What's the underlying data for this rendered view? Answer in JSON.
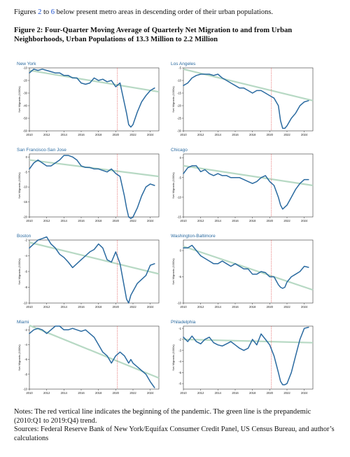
{
  "intro": {
    "before": "Figures ",
    "ref1": "2",
    "middle": " to ",
    "ref2": "6",
    "after": " below present metro areas in descending order of their urban populations."
  },
  "figure_title": "Figure 2: Four-Quarter Moving Average of Quarterly Net Migration to and from Urban Neighborhoods, Urban Populations of 13.3 Million to 2.2 Million",
  "notes": {
    "line1": "Notes: The red vertical line indicates the beginning of the pandemic. The green line is the prepandemic (2010:Q1 to 2019:Q4) trend.",
    "line2": "Sources: Federal Reserve Bank of New York/Equifax Consumer Credit Panel, US Census Bureau, and author’s calculations"
  },
  "colors": {
    "series": "#2a6aa0",
    "trend": "#b7d9c4",
    "pandemic": "#e05050",
    "panel_title": "#2a6aa0"
  },
  "chart_data": [
    {
      "type": "line",
      "title": "New York",
      "ylabel": "Net Migrants (1000s)",
      "xlim": [
        2010,
        2025
      ],
      "ylim": [
        -60,
        -10
      ],
      "xticks": [
        2010,
        2012,
        2014,
        2016,
        2018,
        2020,
        2022,
        2024
      ],
      "yticks": [
        -10,
        -20,
        -30,
        -40,
        -50,
        -60
      ],
      "pandemic_x": 2020.2,
      "trend": [
        [
          2010,
          -12
        ],
        [
          2025,
          -29
        ]
      ],
      "x": [
        2010,
        2010.5,
        2011,
        2011.5,
        2012,
        2012.5,
        2013,
        2013.5,
        2014,
        2014.5,
        2015,
        2015.5,
        2016,
        2016.5,
        2017,
        2017.5,
        2018,
        2018.5,
        2019,
        2019.5,
        2020,
        2020.5,
        2021,
        2021.25,
        2021.5,
        2021.75,
        2022,
        2022.5,
        2023,
        2023.5,
        2024,
        2024.5
      ],
      "y": [
        -14,
        -11,
        -12,
        -11,
        -12,
        -13,
        -14,
        -14,
        -16,
        -16,
        -18,
        -18,
        -22,
        -23,
        -22,
        -18,
        -20,
        -19,
        -21,
        -20,
        -25,
        -22,
        -38,
        -46,
        -55,
        -57,
        -55,
        -45,
        -37,
        -32,
        -28,
        -26
      ]
    },
    {
      "type": "line",
      "title": "Los Angeles",
      "ylabel": "Net Migrants (1000s)",
      "xlim": [
        2010,
        2025
      ],
      "ylim": [
        -30,
        -5
      ],
      "xticks": [
        2010,
        2012,
        2014,
        2016,
        2018,
        2020,
        2022,
        2024
      ],
      "yticks": [
        -5,
        -10,
        -15,
        -20,
        -25,
        -30
      ],
      "pandemic_x": 2020.2,
      "trend": [
        [
          2010,
          -5.5
        ],
        [
          2025,
          -18
        ]
      ],
      "x": [
        2010,
        2010.5,
        2011,
        2011.5,
        2012,
        2012.5,
        2013,
        2013.5,
        2014,
        2014.5,
        2015,
        2015.5,
        2016,
        2016.5,
        2017,
        2017.5,
        2018,
        2018.5,
        2019,
        2019.5,
        2020,
        2020.5,
        2021,
        2021.25,
        2021.5,
        2021.75,
        2022,
        2022.5,
        2023,
        2023.5,
        2024,
        2024.5
      ],
      "y": [
        -12,
        -11,
        -9,
        -8,
        -7.5,
        -7.5,
        -7.5,
        -8,
        -7.5,
        -9,
        -10,
        -11,
        -12,
        -13,
        -13,
        -14,
        -15,
        -14,
        -14,
        -15,
        -16,
        -17,
        -20,
        -26,
        -29,
        -29,
        -28,
        -25,
        -23,
        -20,
        -18.5,
        -18
      ]
    },
    {
      "type": "line",
      "title": "San Francisco-San Jose",
      "ylabel": "Net Migrants (1000s)",
      "xlim": [
        2010,
        2025
      ],
      "ylim": [
        -20,
        1
      ],
      "xticks": [
        2010,
        2012,
        2014,
        2016,
        2018,
        2020,
        2022,
        2024
      ],
      "yticks": [
        0,
        -5,
        -10,
        -15,
        -20
      ],
      "pandemic_x": 2020.2,
      "trend": [
        [
          2010,
          -1
        ],
        [
          2025,
          -6.5
        ]
      ],
      "x": [
        2010,
        2010.5,
        2011,
        2011.5,
        2012,
        2012.5,
        2013,
        2013.5,
        2014,
        2014.5,
        2015,
        2015.5,
        2016,
        2016.5,
        2017,
        2017.5,
        2018,
        2018.5,
        2019,
        2019.5,
        2020,
        2020.5,
        2021,
        2021.25,
        2021.5,
        2021.75,
        2022,
        2022.5,
        2023,
        2023.5,
        2024,
        2024.5
      ],
      "y": [
        -4,
        -2,
        -1,
        -2,
        -3,
        -3,
        -2,
        -1,
        0.5,
        0.5,
        0,
        -1,
        -3,
        -3.5,
        -3.5,
        -4,
        -4,
        -4.5,
        -5,
        -4,
        -5.5,
        -6.5,
        -13,
        -17,
        -20,
        -20.5,
        -20,
        -17,
        -13,
        -10,
        -9,
        -9.5
      ]
    },
    {
      "type": "line",
      "title": "Chicago",
      "ylabel": "Net Migrants (1000s)",
      "xlim": [
        2010,
        2025
      ],
      "ylim": [
        -15,
        1
      ],
      "xticks": [
        2010,
        2012,
        2014,
        2016,
        2018,
        2020,
        2022,
        2024
      ],
      "yticks": [
        0,
        -5,
        -10,
        -15
      ],
      "pandemic_x": 2020.2,
      "trend": [
        [
          2010,
          -2
        ],
        [
          2025,
          -7
        ]
      ],
      "x": [
        2010,
        2010.5,
        2011,
        2011.5,
        2012,
        2012.5,
        2013,
        2013.5,
        2014,
        2014.5,
        2015,
        2015.5,
        2016,
        2016.5,
        2017,
        2017.5,
        2018,
        2018.5,
        2019,
        2019.5,
        2020,
        2020.5,
        2021,
        2021.25,
        2021.5,
        2021.75,
        2022,
        2022.5,
        2023,
        2023.5,
        2024,
        2024.5
      ],
      "y": [
        -4,
        -2.5,
        -2,
        -2,
        -3.5,
        -3,
        -4,
        -4.5,
        -4,
        -4.5,
        -4.5,
        -5,
        -5,
        -5,
        -5.5,
        -6,
        -6.5,
        -6,
        -5,
        -4.5,
        -6,
        -7,
        -10,
        -12,
        -13,
        -12.5,
        -12,
        -10,
        -8,
        -6.5,
        -5.5,
        -5.5
      ]
    },
    {
      "type": "line",
      "title": "Boston",
      "ylabel": "Net Migrants (1000s)",
      "xlim": [
        2010,
        2025
      ],
      "ylim": [
        -10,
        -2
      ],
      "xticks": [
        2010,
        2012,
        2014,
        2016,
        2018,
        2020,
        2022,
        2024
      ],
      "yticks": [
        -2,
        -4,
        -6,
        -8,
        -10
      ],
      "pandemic_x": 2020.2,
      "trend": [
        [
          2010,
          -2.3
        ],
        [
          2025,
          -6.3
        ]
      ],
      "x": [
        2010,
        2010.5,
        2011,
        2011.5,
        2012,
        2012.5,
        2013,
        2013.5,
        2014,
        2014.5,
        2015,
        2015.5,
        2016,
        2016.5,
        2017,
        2017.5,
        2018,
        2018.5,
        2019,
        2019.5,
        2020,
        2020.5,
        2021,
        2021.25,
        2021.5,
        2021.75,
        2022,
        2022.5,
        2023,
        2023.5,
        2024,
        2024.5
      ],
      "y": [
        -3,
        -2.5,
        -2,
        -1.8,
        -1.6,
        -2.5,
        -3,
        -3.8,
        -4.2,
        -4.8,
        -5.5,
        -5,
        -4.5,
        -4,
        -3.5,
        -3.2,
        -2.5,
        -3,
        -4.5,
        -4.8,
        -3.5,
        -5,
        -8,
        -9.5,
        -10,
        -9,
        -8.5,
        -7.5,
        -7,
        -6.5,
        -5.2,
        -5
      ]
    },
    {
      "type": "line",
      "title": "Washington-Baltimore",
      "ylabel": "Net Migrants (1000s)",
      "xlim": [
        2010,
        2025
      ],
      "ylim": [
        -10,
        2
      ],
      "xticks": [
        2010,
        2012,
        2014,
        2016,
        2018,
        2020,
        2022,
        2024
      ],
      "yticks": [
        0,
        -5,
        -10
      ],
      "pandemic_x": 2020.2,
      "trend": [
        [
          2010,
          0.8
        ],
        [
          2025,
          -7.5
        ]
      ],
      "x": [
        2010,
        2010.5,
        2011,
        2011.5,
        2012,
        2012.5,
        2013,
        2013.5,
        2014,
        2014.5,
        2015,
        2015.5,
        2016,
        2016.5,
        2017,
        2017.5,
        2018,
        2018.5,
        2019,
        2019.5,
        2020,
        2020.5,
        2021,
        2021.25,
        2021.5,
        2021.75,
        2022,
        2022.5,
        2023,
        2023.5,
        2024,
        2024.5
      ],
      "y": [
        0.5,
        0.5,
        1,
        0,
        -1,
        -1.5,
        -2,
        -2.5,
        -2.5,
        -2,
        -2.5,
        -3,
        -2.5,
        -3,
        -3.5,
        -3.5,
        -4.5,
        -4.5,
        -4,
        -4.2,
        -5,
        -5,
        -6.5,
        -7,
        -7.2,
        -7,
        -6,
        -5,
        -4.5,
        -4,
        -3,
        -3.2
      ]
    },
    {
      "type": "line",
      "title": "Miami",
      "ylabel": "Net Migrants (1000s)",
      "xlim": [
        2010,
        2025
      ],
      "ylim": [
        -10,
        -1.5
      ],
      "xticks": [
        2010,
        2012,
        2014,
        2016,
        2018,
        2020,
        2022,
        2024
      ],
      "yticks": [
        -2,
        -4,
        -6,
        -8,
        -10
      ],
      "pandemic_x": 2020.2,
      "trend": [
        [
          2010,
          -1.4
        ],
        [
          2025,
          -8.5
        ]
      ],
      "x": [
        2010,
        2010.5,
        2011,
        2011.5,
        2012,
        2012.5,
        2013,
        2013.5,
        2014,
        2014.5,
        2015,
        2015.5,
        2016,
        2016.5,
        2017,
        2017.5,
        2018,
        2018.5,
        2019,
        2019.5,
        2020,
        2020.5,
        2021,
        2021.25,
        2021.5,
        2021.75,
        2022,
        2022.5,
        2023,
        2023.5,
        2024,
        2024.5
      ],
      "y": [
        -2.5,
        -2,
        -1.8,
        -2,
        -2.5,
        -2,
        -1.5,
        -1.5,
        -2,
        -2,
        -1.8,
        -2,
        -2.2,
        -2,
        -2.5,
        -3,
        -4,
        -5,
        -5.5,
        -6.5,
        -5.5,
        -5,
        -5.5,
        -6,
        -6.5,
        -6,
        -6.5,
        -7,
        -7.5,
        -8,
        -9,
        -9.8
      ]
    },
    {
      "type": "line",
      "title": "Philadelphia",
      "ylabel": "Net Migrants (1000s)",
      "xlim": [
        2010,
        2025
      ],
      "ylim": [
        -6.5,
        -0.8
      ],
      "xticks": [
        2010,
        2012,
        2014,
        2016,
        2018,
        2020,
        2022,
        2024
      ],
      "yticks": [
        -1,
        -2,
        -3,
        -4,
        -5,
        -6
      ],
      "pandemic_x": 2020.2,
      "trend": [
        [
          2010,
          -2
        ],
        [
          2025,
          -2.3
        ]
      ],
      "x": [
        2010,
        2010.5,
        2011,
        2011.5,
        2012,
        2012.5,
        2013,
        2013.5,
        2014,
        2014.5,
        2015,
        2015.5,
        2016,
        2016.5,
        2017,
        2017.5,
        2018,
        2018.5,
        2019,
        2019.5,
        2020,
        2020.5,
        2021,
        2021.25,
        2021.5,
        2021.75,
        2022,
        2022.5,
        2023,
        2023.5,
        2024,
        2024.5
      ],
      "y": [
        -1.8,
        -2.2,
        -1.7,
        -2.2,
        -2.4,
        -2,
        -1.8,
        -2.3,
        -2.5,
        -2.6,
        -2.4,
        -2.2,
        -2.5,
        -2.8,
        -3,
        -2.8,
        -2,
        -2.5,
        -1.5,
        -2,
        -2.5,
        -3.5,
        -5,
        -5.8,
        -6.1,
        -6.1,
        -6,
        -5,
        -3.5,
        -2,
        -1,
        -0.9
      ]
    }
  ]
}
